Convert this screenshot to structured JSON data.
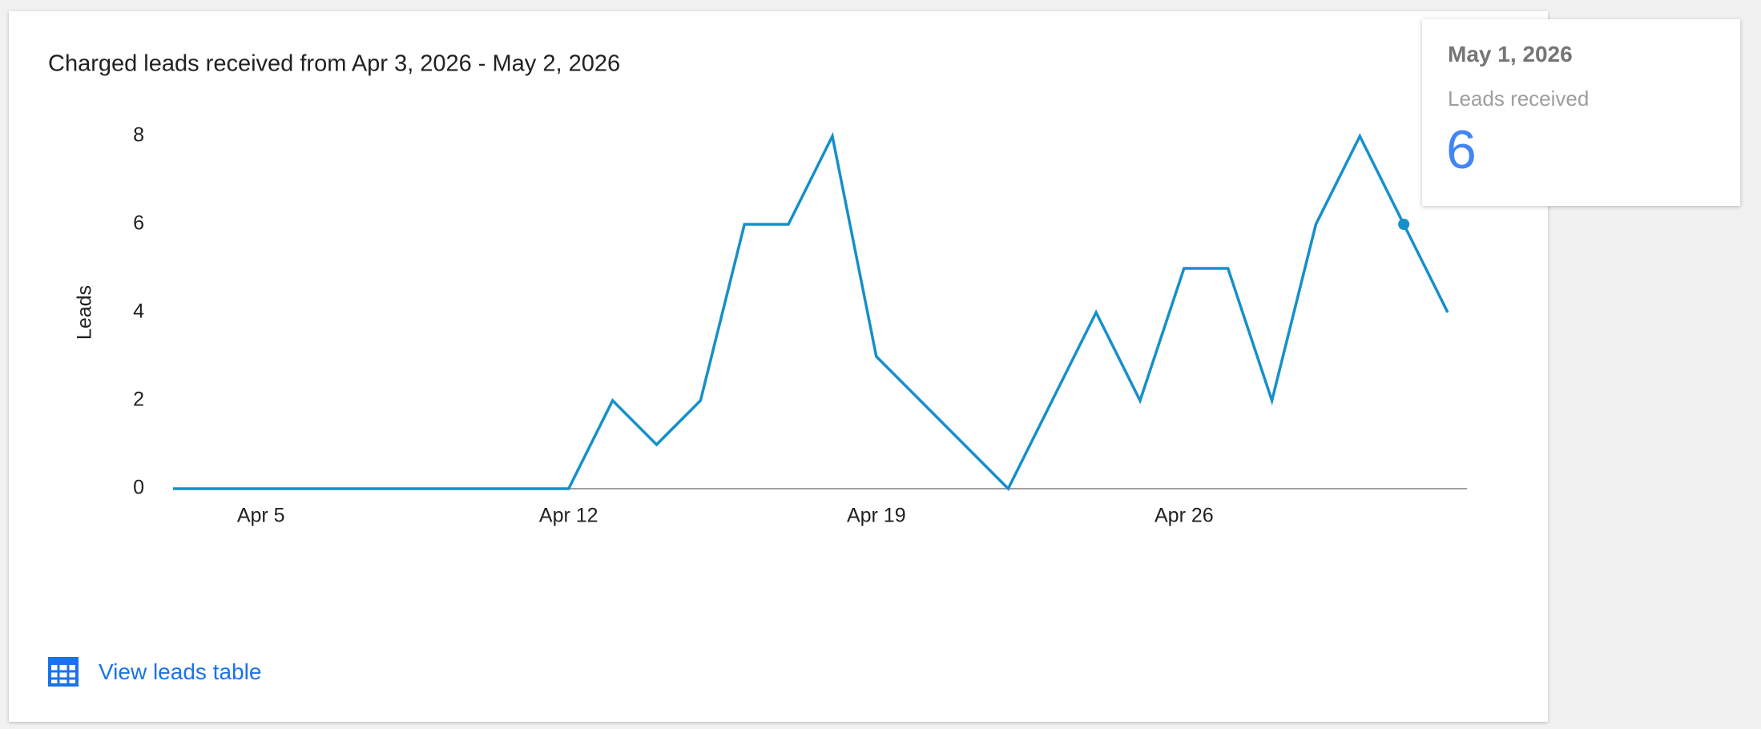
{
  "chart_data": {
    "type": "line",
    "title": "Charged leads received from Apr 3, 2026 - May 2, 2026",
    "y_label": "Leads",
    "categories": [
      null,
      null,
      "Apr 5",
      null,
      null,
      null,
      null,
      null,
      null,
      "Apr 12",
      null,
      null,
      null,
      null,
      null,
      null,
      "Apr 19",
      null,
      null,
      null,
      null,
      null,
      null,
      "Apr 26",
      null,
      null,
      null,
      null,
      null,
      null
    ],
    "series": [
      {
        "name": "Leads received",
        "color": "#168fcb",
        "values": [
          0,
          0,
          0,
          0,
          0,
          0,
          0,
          0,
          0,
          0,
          2,
          1,
          2,
          6,
          6,
          8,
          3,
          2,
          1,
          0,
          2,
          4,
          2,
          5,
          5,
          2,
          6,
          8,
          6,
          4
        ]
      }
    ],
    "ylim": [
      0,
      8
    ],
    "yticks": [
      0,
      2,
      4,
      6,
      8
    ],
    "grid": false
  },
  "tooltip": {
    "date": "May 1, 2026"
  },
  "link": {
    "label": "View leads table"
  }
}
